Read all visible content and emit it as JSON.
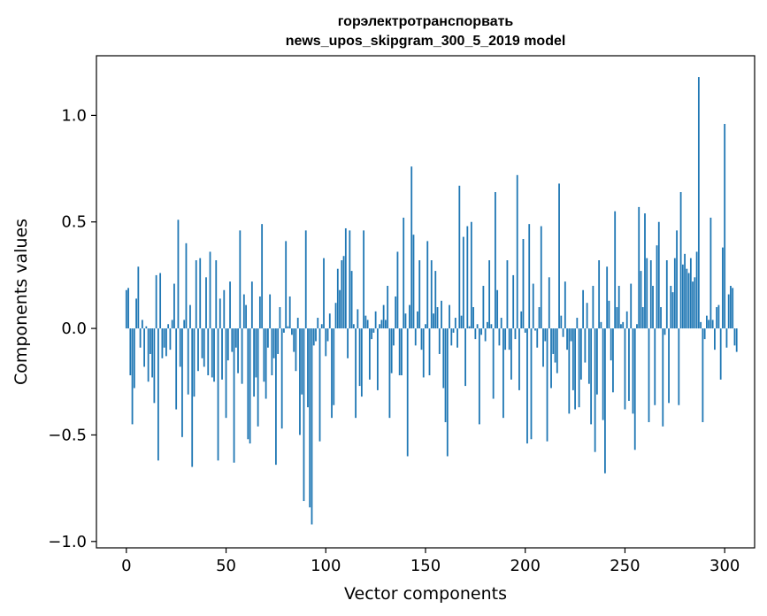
{
  "chart_data": {
    "type": "bar",
    "title": [
      "горэлектротранспорвать",
      "news_upos_skipgram_300_5_2019 model"
    ],
    "xlabel": "Vector components",
    "ylabel": "Components values",
    "xlim": [
      -15,
      315
    ],
    "ylim": [
      -1.03,
      1.28
    ],
    "xticks": [
      0,
      50,
      100,
      150,
      200,
      250,
      300
    ],
    "xtick_labels": [
      "0",
      "50",
      "100",
      "150",
      "200",
      "250",
      "300"
    ],
    "yticks": [
      -1.0,
      -0.5,
      0.0,
      0.5,
      1.0
    ],
    "ytick_labels": [
      "−1.0",
      "−0.5",
      "0.0",
      "0.5",
      "1.0"
    ],
    "bar_color": "#1f77b4",
    "grid": false,
    "values": [
      0.18,
      0.19,
      -0.22,
      -0.45,
      -0.28,
      0.14,
      0.29,
      -0.09,
      0.04,
      -0.18,
      0.01,
      -0.25,
      -0.12,
      -0.23,
      -0.35,
      0.25,
      -0.62,
      0.26,
      -0.14,
      -0.09,
      -0.13,
      0.02,
      -0.1,
      0.04,
      0.21,
      -0.38,
      0.51,
      -0.18,
      -0.51,
      0.04,
      0.4,
      -0.31,
      0.11,
      -0.65,
      -0.32,
      0.32,
      -0.2,
      0.33,
      -0.14,
      -0.18,
      0.24,
      -0.22,
      0.36,
      -0.23,
      -0.25,
      0.32,
      -0.62,
      0.14,
      -0.24,
      0.18,
      -0.42,
      -0.15,
      0.22,
      -0.11,
      -0.63,
      -0.09,
      -0.21,
      0.46,
      -0.26,
      0.16,
      0.11,
      -0.52,
      -0.54,
      0.22,
      -0.32,
      -0.23,
      -0.46,
      0.15,
      0.49,
      -0.25,
      -0.33,
      -0.09,
      0.16,
      -0.22,
      -0.14,
      -0.64,
      -0.12,
      0.1,
      -0.47,
      -0.02,
      0.41,
      0.01,
      0.15,
      -0.03,
      -0.11,
      -0.2,
      0.05,
      -0.5,
      -0.31,
      -0.81,
      0.46,
      -0.37,
      -0.84,
      -0.92,
      -0.08,
      -0.06,
      0.05,
      -0.53,
      0.02,
      0.33,
      -0.13,
      -0.06,
      0.07,
      -0.42,
      -0.36,
      0.12,
      0.28,
      0.18,
      0.32,
      0.34,
      0.47,
      -0.14,
      0.46,
      0.27,
      0.02,
      -0.42,
      0.09,
      -0.27,
      -0.32,
      0.46,
      0.06,
      0.04,
      -0.24,
      -0.05,
      -0.02,
      0.08,
      -0.29,
      0.02,
      0.04,
      0.11,
      0.04,
      0.2,
      -0.42,
      -0.21,
      -0.08,
      0.15,
      0.36,
      -0.22,
      -0.22,
      0.52,
      0.07,
      -0.6,
      0.11,
      0.76,
      0.44,
      -0.08,
      0.08,
      0.32,
      -0.1,
      -0.23,
      0.02,
      0.41,
      -0.22,
      0.32,
      0.07,
      0.27,
      0.1,
      -0.12,
      0.13,
      -0.28,
      -0.44,
      -0.6,
      0.11,
      -0.08,
      -0.02,
      0.05,
      -0.09,
      0.67,
      0.06,
      0.43,
      -0.27,
      0.48,
      0.01,
      0.5,
      0.1,
      -0.05,
      0.02,
      -0.45,
      -0.03,
      0.2,
      -0.06,
      0.03,
      0.32,
      0.02,
      -0.33,
      0.64,
      0.18,
      -0.08,
      0.05,
      -0.42,
      -0.1,
      0.32,
      -0.1,
      -0.24,
      0.25,
      -0.05,
      0.72,
      -0.29,
      0.08,
      0.42,
      -0.02,
      -0.54,
      0.49,
      -0.52,
      0.21,
      -0.01,
      -0.09,
      0.1,
      0.48,
      -0.18,
      -0.06,
      -0.53,
      0.24,
      -0.28,
      -0.12,
      -0.16,
      -0.21,
      0.68,
      0.06,
      -0.04,
      0.22,
      -0.1,
      -0.4,
      -0.06,
      -0.29,
      -0.38,
      0.05,
      -0.37,
      -0.24,
      0.18,
      -0.16,
      0.12,
      -0.26,
      -0.45,
      0.2,
      -0.58,
      -0.31,
      0.32,
      0.03,
      -0.43,
      -0.68,
      0.29,
      0.13,
      -0.15,
      -0.3,
      0.55,
      0.1,
      0.2,
      0.02,
      0.03,
      -0.38,
      0.08,
      -0.34,
      0.21,
      -0.4,
      -0.57,
      0.02,
      0.57,
      0.27,
      0.1,
      0.54,
      0.33,
      -0.44,
      0.32,
      0.2,
      -0.36,
      0.39,
      0.5,
      0.1,
      -0.46,
      -0.03,
      0.32,
      -0.35,
      0.2,
      0.17,
      0.33,
      0.46,
      -0.36,
      0.64,
      0.3,
      0.35,
      0.28,
      0.26,
      0.33,
      0.22,
      0.24,
      0.36,
      1.18,
      0.03,
      -0.44,
      -0.05,
      0.06,
      0.04,
      0.52,
      0.04,
      -0.1,
      0.1,
      0.11,
      -0.24,
      0.38,
      0.96,
      -0.09,
      0.16,
      0.2,
      0.19,
      -0.08,
      -0.11
    ]
  }
}
